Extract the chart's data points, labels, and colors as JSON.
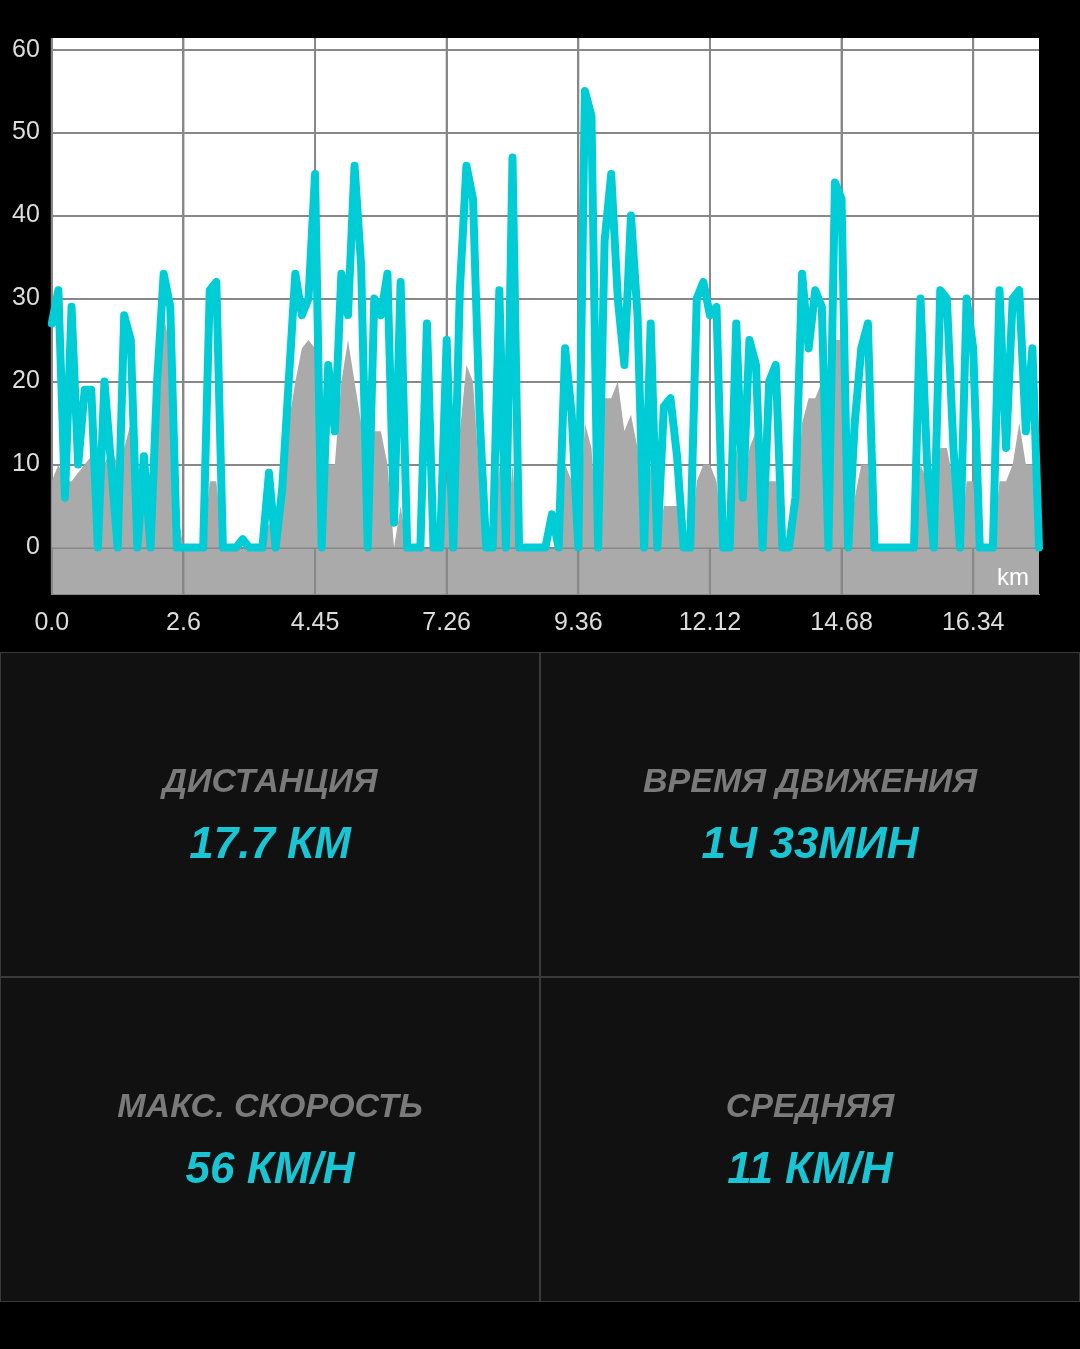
{
  "chart_data": [
    {
      "type": "line",
      "categories": [
        "0.0",
        null,
        null,
        null,
        null,
        null,
        null,
        null,
        null,
        null,
        null,
        null,
        null,
        null,
        null,
        null,
        null,
        null,
        null,
        null,
        "2.6",
        null,
        null,
        null,
        null,
        null,
        null,
        null,
        null,
        null,
        null,
        null,
        null,
        null,
        null,
        null,
        null,
        null,
        null,
        null,
        "4.45",
        null,
        null,
        null,
        null,
        null,
        null,
        null,
        null,
        null,
        null,
        null,
        null,
        null,
        null,
        null,
        null,
        null,
        null,
        null,
        "7.26",
        null,
        null,
        null,
        null,
        null,
        null,
        null,
        null,
        null,
        null,
        null,
        null,
        null,
        null,
        null,
        null,
        null,
        null,
        null,
        "9.36",
        null,
        null,
        null,
        null,
        null,
        null,
        null,
        null,
        null,
        null,
        null,
        null,
        null,
        null,
        null,
        null,
        null,
        null,
        null,
        "12.12",
        null,
        null,
        null,
        null,
        null,
        null,
        null,
        null,
        null,
        null,
        null,
        null,
        null,
        null,
        null,
        null,
        null,
        null,
        null,
        "14.68",
        null,
        null,
        null,
        null,
        null,
        null,
        null,
        null,
        null,
        null,
        null,
        null,
        null,
        null,
        null,
        null,
        null,
        null,
        null,
        "16.34",
        null,
        null,
        null,
        null,
        null,
        null,
        null,
        null,
        null,
        null
      ],
      "series": [
        {
          "type": "area",
          "color": "#aaaaaa",
          "values": [
            8,
            10,
            8,
            8,
            9,
            10,
            11,
            8,
            10,
            12,
            10,
            12,
            15,
            5,
            5,
            0,
            12,
            28,
            24,
            5,
            0,
            0,
            0,
            0,
            8,
            8,
            0,
            0,
            0,
            0,
            0,
            0,
            0,
            3,
            0,
            6,
            15,
            20,
            24,
            25,
            24,
            0,
            10,
            10,
            20,
            25,
            20,
            15,
            0,
            14,
            14,
            10,
            0,
            5,
            0,
            0,
            0,
            0,
            0,
            0,
            8,
            0,
            14,
            22,
            20,
            8,
            0,
            0,
            10,
            0,
            10,
            0,
            0,
            0,
            0,
            0,
            0,
            0,
            10,
            8,
            0,
            15,
            12,
            0,
            18,
            18,
            20,
            14,
            16,
            12,
            0,
            10,
            0,
            5,
            5,
            5,
            0,
            0,
            8,
            10,
            10,
            8,
            0,
            0,
            12,
            6,
            12,
            14,
            0,
            8,
            8,
            0,
            0,
            4,
            15,
            18,
            18,
            20,
            0,
            25,
            25,
            0,
            6,
            10,
            10,
            0,
            0,
            0,
            0,
            0,
            0,
            0,
            10,
            8,
            0,
            12,
            12,
            8,
            0,
            8,
            8,
            0,
            0,
            0,
            8,
            8,
            10,
            15,
            10,
            10,
            5
          ]
        },
        {
          "type": "line",
          "color": "#00ccd6",
          "values": [
            27,
            31,
            6,
            29,
            10,
            19,
            19,
            0,
            20,
            10,
            0,
            28,
            25,
            0,
            11,
            0,
            20,
            33,
            29,
            0,
            0,
            0,
            0,
            0,
            31,
            32,
            0,
            0,
            0,
            1,
            0,
            0,
            0,
            9,
            0,
            7,
            20,
            33,
            28,
            30,
            45,
            0,
            22,
            14,
            33,
            28,
            46,
            34,
            0,
            30,
            28,
            33,
            3,
            32,
            0,
            0,
            0,
            27,
            0,
            0,
            25,
            0,
            31,
            46,
            42,
            16,
            0,
            0,
            31,
            0,
            47,
            0,
            0,
            0,
            0,
            0,
            4,
            0,
            24,
            16,
            0,
            55,
            52,
            0,
            37,
            45,
            30,
            22,
            40,
            28,
            0,
            27,
            0,
            17,
            18,
            11,
            0,
            0,
            30,
            32,
            28,
            29,
            0,
            0,
            27,
            6,
            25,
            22,
            0,
            20,
            22,
            0,
            0,
            6,
            33,
            24,
            31,
            29,
            0,
            44,
            42,
            0,
            15,
            24,
            27,
            0,
            0,
            0,
            0,
            0,
            0,
            0,
            30,
            10,
            0,
            31,
            30,
            12,
            0,
            30,
            24,
            0,
            0,
            0,
            31,
            12,
            30,
            31,
            14,
            24,
            0
          ]
        }
      ],
      "bands": [
        {
          "axis": "y",
          "from": -5.6,
          "to": 0,
          "color": "#aaaaaa"
        }
      ],
      "ylim": [
        -5.6,
        61.4
      ],
      "yticks": [
        0,
        10,
        20,
        30,
        40,
        50,
        60
      ],
      "grid": true,
      "legend": false,
      "marker": "none",
      "line_style": "solid",
      "annotations": [
        "km"
      ]
    },
    {
      "type": "other",
      "annotations": [
        "ДИСТАНЦИЯ",
        "17.7 КМ",
        "ВРЕМЯ ДВИЖЕНИЯ",
        "1Ч 33МИН",
        "МАКС. СКОРОСТЬ",
        "56 КМ/Н",
        "СРЕДНЯЯ",
        "11 КМ/Н"
      ]
    }
  ]
}
